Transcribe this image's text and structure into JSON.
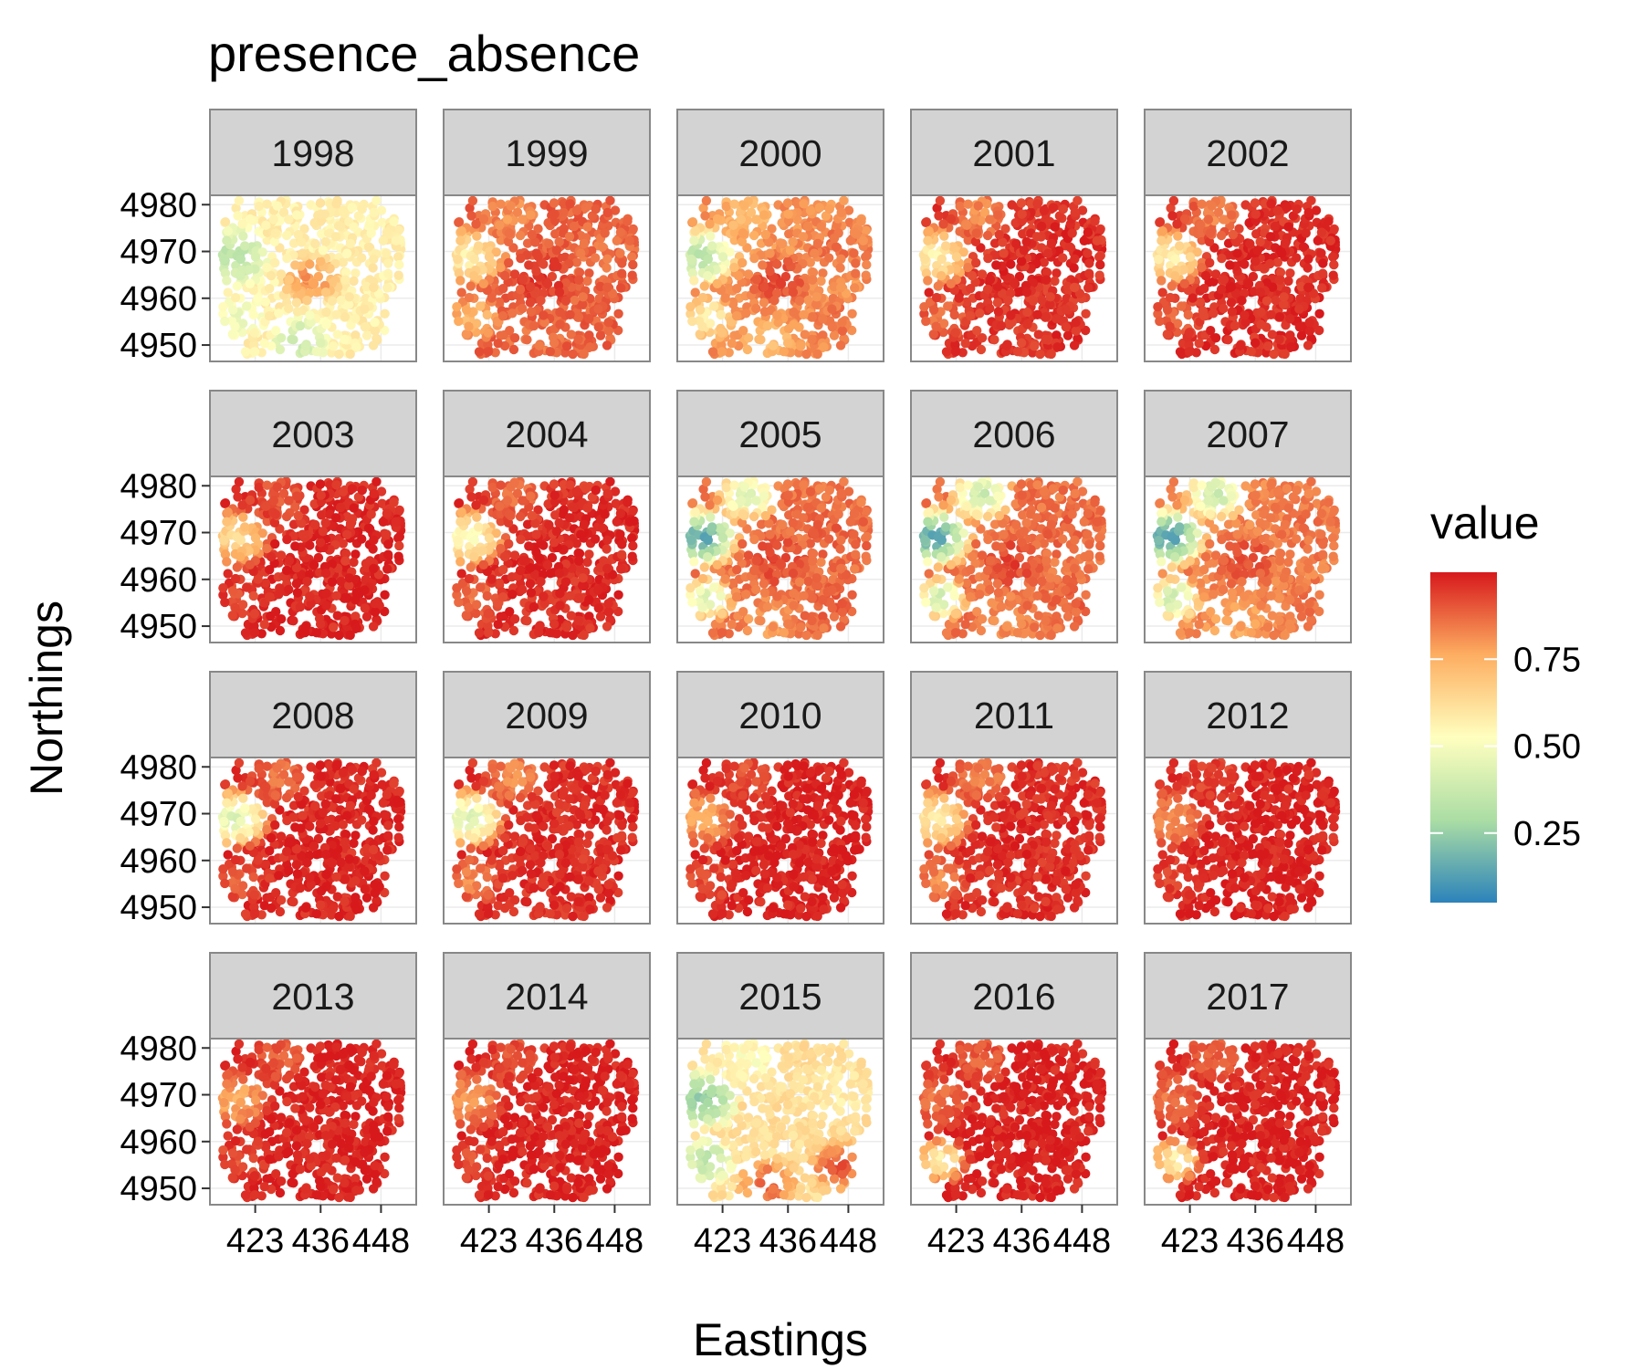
{
  "chart_data": {
    "type": "scatter",
    "title": "presence_absence",
    "xlabel": "Eastings",
    "ylabel": "Northings",
    "xticks": [
      423,
      436,
      448
    ],
    "yticks": [
      4950,
      4960,
      4970,
      4980
    ],
    "xlim": [
      414,
      455
    ],
    "ylim": [
      4946.5,
      4982
    ],
    "grid": true,
    "legend": {
      "title": "value",
      "placement": "right",
      "breaks": [
        "0.25",
        "0.50",
        "0.75"
      ],
      "range": [
        0.05,
        1.0
      ],
      "gradient_colors": [
        "#2b83ba",
        "#abdda4",
        "#ffffbf",
        "#fdae61",
        "#d7191c"
      ]
    },
    "panels": [
      {
        "label": "1998",
        "base": 0.55,
        "nw": 0.3,
        "center": 0.8,
        "north": 0.55,
        "south": 0.35,
        "east": 0.55,
        "se": 0.55,
        "sw": 0.45
      },
      {
        "label": "1999",
        "base": 0.88,
        "nw": 0.55,
        "center": 0.95,
        "north": 0.8,
        "south": 0.85,
        "east": 0.85,
        "se": 0.88,
        "sw": 0.7
      },
      {
        "label": "2000",
        "base": 0.8,
        "nw": 0.3,
        "center": 0.93,
        "north": 0.7,
        "south": 0.7,
        "east": 0.85,
        "se": 0.85,
        "sw": 0.55
      },
      {
        "label": "2001",
        "base": 0.95,
        "nw": 0.55,
        "center": 0.98,
        "north": 0.8,
        "south": 0.95,
        "east": 0.98,
        "se": 0.97,
        "sw": 0.85
      },
      {
        "label": "2002",
        "base": 0.96,
        "nw": 0.55,
        "center": 0.98,
        "north": 0.82,
        "south": 0.97,
        "east": 0.98,
        "se": 0.98,
        "sw": 0.88
      },
      {
        "label": "2003",
        "base": 0.97,
        "nw": 0.62,
        "center": 0.99,
        "north": 0.88,
        "south": 0.98,
        "east": 0.99,
        "se": 0.99,
        "sw": 0.92
      },
      {
        "label": "2004",
        "base": 0.96,
        "nw": 0.5,
        "center": 0.99,
        "north": 0.85,
        "south": 0.97,
        "east": 0.99,
        "se": 0.98,
        "sw": 0.85
      },
      {
        "label": "2005",
        "base": 0.85,
        "nw": 0.1,
        "center": 0.92,
        "north": 0.4,
        "south": 0.78,
        "east": 0.88,
        "se": 0.88,
        "sw": 0.4
      },
      {
        "label": "2006",
        "base": 0.85,
        "nw": 0.1,
        "center": 0.93,
        "north": 0.35,
        "south": 0.8,
        "east": 0.88,
        "se": 0.88,
        "sw": 0.35
      },
      {
        "label": "2007",
        "base": 0.82,
        "nw": 0.08,
        "center": 0.92,
        "north": 0.35,
        "south": 0.75,
        "east": 0.85,
        "se": 0.85,
        "sw": 0.35
      },
      {
        "label": "2008",
        "base": 0.97,
        "nw": 0.4,
        "center": 0.99,
        "north": 0.85,
        "south": 0.97,
        "east": 0.99,
        "se": 0.98,
        "sw": 0.88
      },
      {
        "label": "2009",
        "base": 0.96,
        "nw": 0.4,
        "center": 0.98,
        "north": 0.8,
        "south": 0.96,
        "east": 0.98,
        "se": 0.97,
        "sw": 0.8
      },
      {
        "label": "2010",
        "base": 0.98,
        "nw": 0.75,
        "center": 0.99,
        "north": 0.9,
        "south": 0.98,
        "east": 0.99,
        "se": 0.99,
        "sw": 0.9
      },
      {
        "label": "2011",
        "base": 0.96,
        "nw": 0.55,
        "center": 0.98,
        "north": 0.82,
        "south": 0.96,
        "east": 0.98,
        "se": 0.97,
        "sw": 0.8
      },
      {
        "label": "2012",
        "base": 0.98,
        "nw": 0.8,
        "center": 0.99,
        "north": 0.92,
        "south": 0.99,
        "east": 0.99,
        "se": 0.99,
        "sw": 0.92
      },
      {
        "label": "2013",
        "base": 0.98,
        "nw": 0.75,
        "center": 0.98,
        "north": 0.88,
        "south": 0.98,
        "east": 0.99,
        "se": 0.99,
        "sw": 0.9
      },
      {
        "label": "2014",
        "base": 0.98,
        "nw": 0.78,
        "center": 0.98,
        "north": 0.9,
        "south": 0.98,
        "east": 0.99,
        "se": 0.99,
        "sw": 0.9
      },
      {
        "label": "2015",
        "base": 0.6,
        "nw": 0.2,
        "center": 0.6,
        "north": 0.5,
        "south": 0.88,
        "east": 0.55,
        "se": 0.9,
        "sw": 0.3
      },
      {
        "label": "2016",
        "base": 0.98,
        "nw": 0.85,
        "center": 0.98,
        "north": 0.88,
        "south": 0.98,
        "east": 0.99,
        "se": 0.99,
        "sw": 0.55
      },
      {
        "label": "2017",
        "base": 0.98,
        "nw": 0.85,
        "center": 0.98,
        "north": 0.88,
        "south": 0.98,
        "east": 0.99,
        "se": 0.99,
        "sw": 0.55
      }
    ]
  }
}
